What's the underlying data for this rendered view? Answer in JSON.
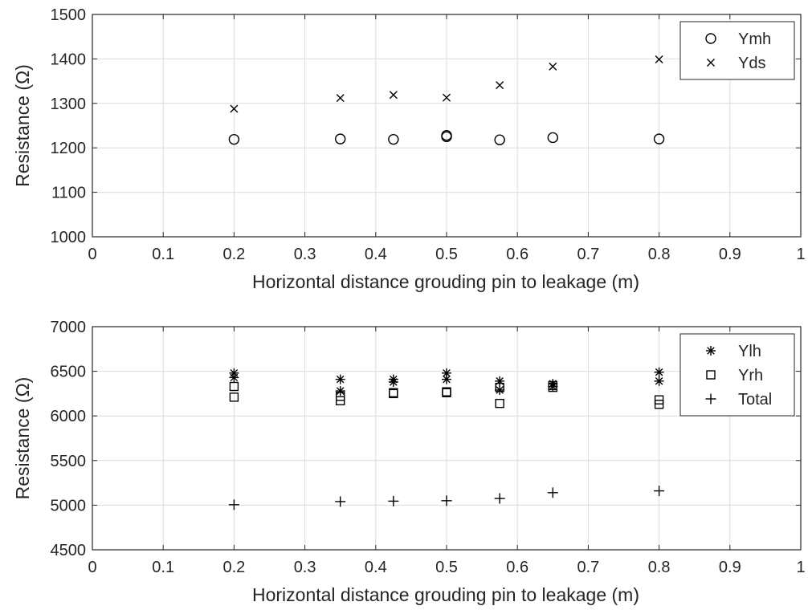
{
  "chart_data": [
    {
      "type": "scatter",
      "title": "",
      "xlabel": "Horizontal distance grouding pin to leakage (m)",
      "ylabel": "Resistance (Ω)",
      "xlim": [
        0,
        1
      ],
      "ylim": [
        1000,
        1500
      ],
      "xticks": [
        0,
        0.1,
        0.2,
        0.3,
        0.4,
        0.5,
        0.6,
        0.7,
        0.8,
        0.9,
        1
      ],
      "xtick_labels": [
        "0",
        "0.1",
        "0.2",
        "0.3",
        "0.4",
        "0.5",
        "0.6",
        "0.7",
        "0.8",
        "0.9",
        "1"
      ],
      "yticks": [
        1000,
        1100,
        1200,
        1300,
        1400,
        1500
      ],
      "ytick_labels": [
        "1000",
        "1100",
        "1200",
        "1300",
        "1400",
        "1500"
      ],
      "grid": true,
      "legend_position": "top-right",
      "series": [
        {
          "name": "Ymh",
          "marker": "circle",
          "points": [
            [
              0.2,
              1219
            ],
            [
              0.35,
              1220
            ],
            [
              0.425,
              1219
            ],
            [
              0.5,
              1225
            ],
            [
              0.5,
              1228
            ],
            [
              0.575,
              1218
            ],
            [
              0.65,
              1223
            ],
            [
              0.8,
              1220
            ]
          ]
        },
        {
          "name": "Yds",
          "marker": "x",
          "points": [
            [
              0.2,
              1288
            ],
            [
              0.35,
              1312
            ],
            [
              0.425,
              1319
            ],
            [
              0.5,
              1313
            ],
            [
              0.575,
              1341
            ],
            [
              0.65,
              1383
            ],
            [
              0.8,
              1399
            ]
          ]
        }
      ]
    },
    {
      "type": "scatter",
      "title": "",
      "xlabel": "Horizontal distance grouding pin to leakage (m)",
      "ylabel": "Resistance (Ω)",
      "xlim": [
        0,
        1
      ],
      "ylim": [
        4500,
        7000
      ],
      "xticks": [
        0,
        0.1,
        0.2,
        0.3,
        0.4,
        0.5,
        0.6,
        0.7,
        0.8,
        0.9,
        1
      ],
      "xtick_labels": [
        "0",
        "0.1",
        "0.2",
        "0.3",
        "0.4",
        "0.5",
        "0.6",
        "0.7",
        "0.8",
        "0.9",
        "1"
      ],
      "yticks": [
        4500,
        5000,
        5500,
        6000,
        6500,
        7000
      ],
      "ytick_labels": [
        "4500",
        "5000",
        "5500",
        "6000",
        "6500",
        "7000"
      ],
      "grid": true,
      "legend_position": "top-right",
      "series": [
        {
          "name": "Ylh",
          "marker": "asterisk",
          "points": [
            [
              0.2,
              6480
            ],
            [
              0.2,
              6430
            ],
            [
              0.35,
              6410
            ],
            [
              0.35,
              6280
            ],
            [
              0.425,
              6410
            ],
            [
              0.425,
              6380
            ],
            [
              0.5,
              6480
            ],
            [
              0.5,
              6410
            ],
            [
              0.575,
              6390
            ],
            [
              0.575,
              6290
            ],
            [
              0.65,
              6360
            ],
            [
              0.65,
              6330
            ],
            [
              0.8,
              6490
            ],
            [
              0.8,
              6390
            ]
          ]
        },
        {
          "name": "Yrh",
          "marker": "square",
          "points": [
            [
              0.2,
              6330
            ],
            [
              0.2,
              6210
            ],
            [
              0.35,
              6220
            ],
            [
              0.35,
              6170
            ],
            [
              0.425,
              6260
            ],
            [
              0.425,
              6250
            ],
            [
              0.5,
              6270
            ],
            [
              0.5,
              6260
            ],
            [
              0.575,
              6320
            ],
            [
              0.575,
              6140
            ],
            [
              0.65,
              6340
            ],
            [
              0.65,
              6320
            ],
            [
              0.8,
              6180
            ],
            [
              0.8,
              6130
            ]
          ]
        },
        {
          "name": "Total",
          "marker": "plus",
          "points": [
            [
              0.2,
              5005
            ],
            [
              0.35,
              5040
            ],
            [
              0.425,
              5045
            ],
            [
              0.5,
              5050
            ],
            [
              0.575,
              5075
            ],
            [
              0.65,
              5140
            ],
            [
              0.8,
              5160
            ]
          ]
        }
      ]
    }
  ]
}
